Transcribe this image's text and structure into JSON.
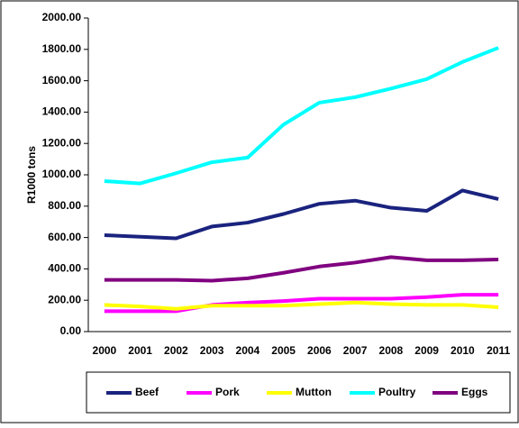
{
  "chart_data": {
    "type": "line",
    "y_label": "R1000 tons",
    "categories": [
      "2000",
      "2001",
      "2002",
      "2003",
      "2004",
      "2005",
      "2006",
      "2007",
      "2008",
      "2009",
      "2010",
      "2011"
    ],
    "series": [
      {
        "name": "Beef",
        "color": "#1a237e",
        "values": [
          615,
          605,
          595,
          670,
          695,
          750,
          815,
          835,
          790,
          770,
          900,
          845
        ]
      },
      {
        "name": "Pork",
        "color": "#ff00ff",
        "values": [
          130,
          130,
          130,
          170,
          185,
          195,
          210,
          210,
          210,
          220,
          235,
          235
        ]
      },
      {
        "name": "Mutton",
        "color": "#ffff00",
        "values": [
          170,
          160,
          145,
          165,
          165,
          165,
          175,
          185,
          175,
          170,
          170,
          155
        ]
      },
      {
        "name": "Poultry",
        "color": "#00ffff",
        "values": [
          960,
          945,
          1010,
          1080,
          1110,
          1320,
          1460,
          1495,
          1550,
          1610,
          1720,
          1810
        ]
      },
      {
        "name": "Eggs",
        "color": "#800080",
        "values": [
          330,
          330,
          330,
          325,
          340,
          375,
          415,
          440,
          475,
          455,
          455,
          460
        ]
      }
    ],
    "ylim": [
      0,
      2000
    ],
    "yticks": [
      {
        "value": 0,
        "label": "0.00"
      },
      {
        "value": 200,
        "label": "200.00"
      },
      {
        "value": 400,
        "label": "400.00"
      },
      {
        "value": 600,
        "label": "600.00"
      },
      {
        "value": 800,
        "label": "800.00"
      },
      {
        "value": 1000,
        "label": "1000.00"
      },
      {
        "value": 1200,
        "label": "1200.00"
      },
      {
        "value": 1400,
        "label": "1400.00"
      },
      {
        "value": 1600,
        "label": "1600.00"
      },
      {
        "value": 1800,
        "label": "1800.00"
      },
      {
        "value": 2000,
        "label": "2000.00"
      }
    ]
  }
}
